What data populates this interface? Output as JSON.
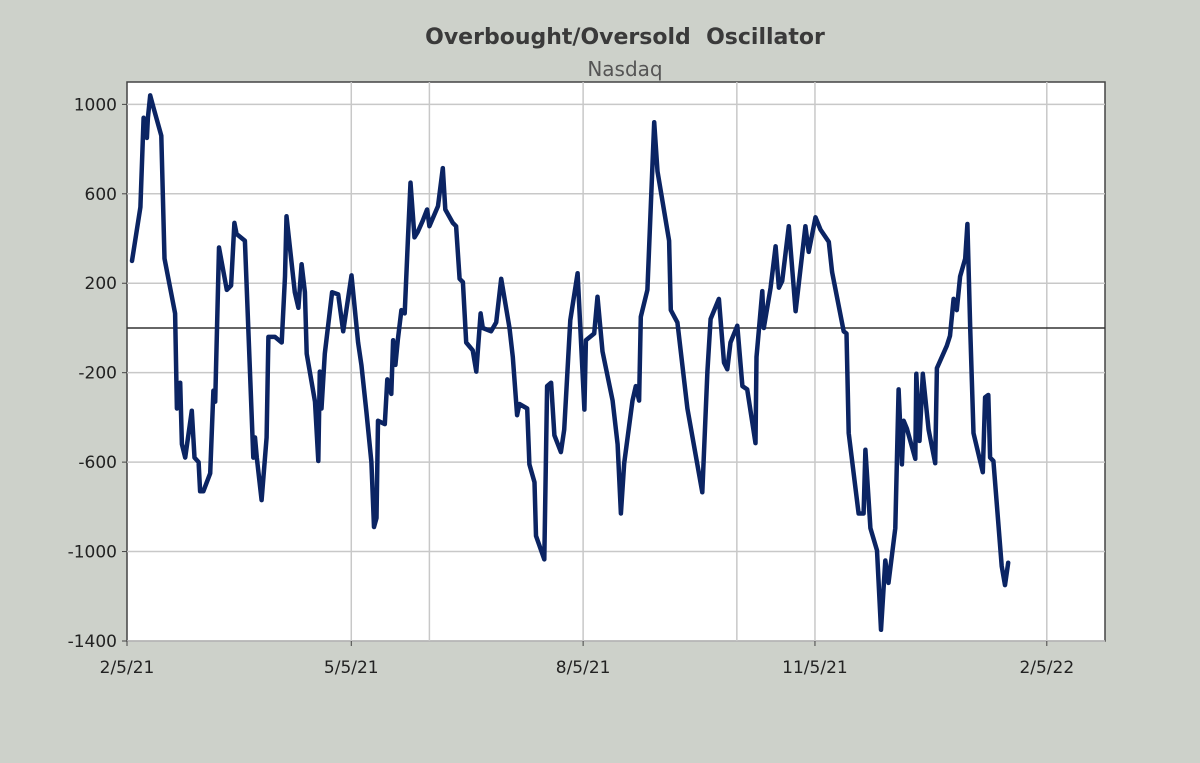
{
  "chart_data": {
    "type": "line",
    "title": "Overbought/Oversold  Oscillator",
    "subtitle": "Nasdaq",
    "xlabel": "",
    "ylabel": "",
    "x_unit": "days since 2/5/21",
    "xlim": [
      0,
      380
    ],
    "ylim": [
      -1400,
      1100
    ],
    "grid": true,
    "legend": "none",
    "line_color": "#0b2463",
    "y_ticks": [
      1000,
      600,
      200,
      -200,
      -600,
      -1000,
      -1400
    ],
    "y_tick_labels": [
      "1000",
      "600",
      "200",
      "-200",
      "-600",
      "-1000",
      "-1400"
    ],
    "x_ticks": [
      0,
      89,
      181,
      273,
      365
    ],
    "x_tick_labels": [
      "2/5/21",
      "5/5/21",
      "8/5/21",
      "11/5/21",
      "2/5/22"
    ],
    "x_gridlines": [
      89,
      120,
      181,
      242,
      273,
      365
    ],
    "reference_line": 0,
    "series": [
      {
        "name": "Nasdaq",
        "x": [
          2,
          5.3,
          6.6,
          7.9,
          8.3,
          9.2,
          10.5,
          13.6,
          14.9,
          19.1,
          19.8,
          21.1,
          21.8,
          23.1,
          25.7,
          26.8,
          28.4,
          29,
          30.3,
          33,
          34.3,
          35,
          36.5,
          39.6,
          41.3,
          42.6,
          43.5,
          46.8,
          50.1,
          50.8,
          51.5,
          53.4,
          55.4,
          56.1,
          58.7,
          61.4,
          62.7,
          63.3,
          66.6,
          68,
          69.3,
          70.6,
          71.3,
          74.6,
          75.9,
          76.5,
          77.2,
          78.5,
          81.4,
          83.8,
          85.8,
          89.1,
          91.7,
          93,
          95,
          97,
          98,
          99,
          99.6,
          102.3,
          103.3,
          104.9,
          105.6,
          106.5,
          107.5,
          108.9,
          110.2,
          111.5,
          112.5,
          114.1,
          115.4,
          117.4,
          119.1,
          120,
          123.4,
          125.3,
          126.3,
          129.3,
          130.6,
          132,
          133.3,
          134.6,
          137.2,
          138.6,
          140.3,
          141.2,
          144.5,
          146.5,
          148.5,
          151.8,
          153.1,
          154.8,
          155.7,
          158.8,
          159.7,
          161.7,
          162.3,
          165.6,
          166.7,
          168.3,
          169.6,
          172.2,
          173.5,
          175.9,
          178.8,
          181.5,
          182.1,
          185.4,
          186.7,
          188.7,
          192.7,
          194.7,
          196,
          197.3,
          200.6,
          201.9,
          203.2,
          203.9,
          206.5,
          209.2,
          210.5,
          215.1,
          215.8,
          218.4,
          222.4,
          228.3,
          230.3,
          231.6,
          234.9,
          236.9,
          238.2,
          239.5,
          242.2,
          244.2,
          246.1,
          249.4,
          249.8,
          252.1,
          252.7,
          255.4,
          257.4,
          258.7,
          260,
          262.6,
          265.3,
          269.2,
          270.5,
          273.2,
          275.2,
          278.5,
          279.8,
          284.4,
          285.5,
          286.4,
          290.3,
          292.3,
          293,
          295,
          297.6,
          299.2,
          300.9,
          302.2,
          304.9,
          306.2,
          307.5,
          308.2,
          309.5,
          312.8,
          313.2,
          314.5,
          315.8,
          318.1,
          320.7,
          321.4,
          325.3,
          326.6,
          328,
          329.3,
          330.6,
          332.6,
          333.5,
          334.6,
          335.9,
          339.6,
          340.5,
          341.8,
          342.5,
          343.8,
          347.1,
          348.4,
          349.7
        ],
        "y": [
          300,
          540,
          940,
          850,
          940,
          1040,
          985,
          860,
          310,
          65,
          -360,
          -245,
          -520,
          -580,
          -370,
          -580,
          -600,
          -730,
          -730,
          -650,
          -280,
          -330,
          360,
          170,
          190,
          470,
          420,
          390,
          -580,
          -490,
          -580,
          -770,
          -490,
          -40,
          -40,
          -65,
          230,
          500,
          160,
          90,
          285,
          160,
          -115,
          -330,
          -595,
          -195,
          -360,
          -115,
          160,
          150,
          -15,
          235,
          -65,
          -165,
          -375,
          -600,
          -890,
          -850,
          -415,
          -430,
          -230,
          -295,
          -55,
          -165,
          -50,
          80,
          65,
          405,
          650,
          405,
          430,
          480,
          530,
          455,
          545,
          715,
          530,
          470,
          455,
          220,
          205,
          -65,
          -100,
          -195,
          65,
          0,
          -15,
          25,
          220,
          0,
          -130,
          -390,
          -340,
          -360,
          -610,
          -690,
          -930,
          -1035,
          -260,
          -245,
          -480,
          -555,
          -455,
          35,
          245,
          -365,
          -55,
          -25,
          140,
          -105,
          -325,
          -520,
          -830,
          -605,
          -325,
          -260,
          -325,
          50,
          170,
          920,
          700,
          390,
          80,
          25,
          -360,
          -735,
          -195,
          40,
          130,
          -155,
          -185,
          -65,
          10,
          -260,
          -275,
          -515,
          -130,
          165,
          0,
          180,
          365,
          180,
          210,
          455,
          75,
          455,
          340,
          495,
          440,
          385,
          250,
          -15,
          -25,
          -470,
          -830,
          -830,
          -545,
          -895,
          -995,
          -1350,
          -1040,
          -1140,
          -895,
          -275,
          -610,
          -415,
          -450,
          -585,
          -205,
          -505,
          -205,
          -455,
          -605,
          -180,
          -80,
          -35,
          130,
          80,
          230,
          310,
          465,
          0,
          -470,
          -645,
          -310,
          -300,
          -580,
          -595,
          -1065,
          -1150,
          -1050
        ]
      }
    ]
  }
}
